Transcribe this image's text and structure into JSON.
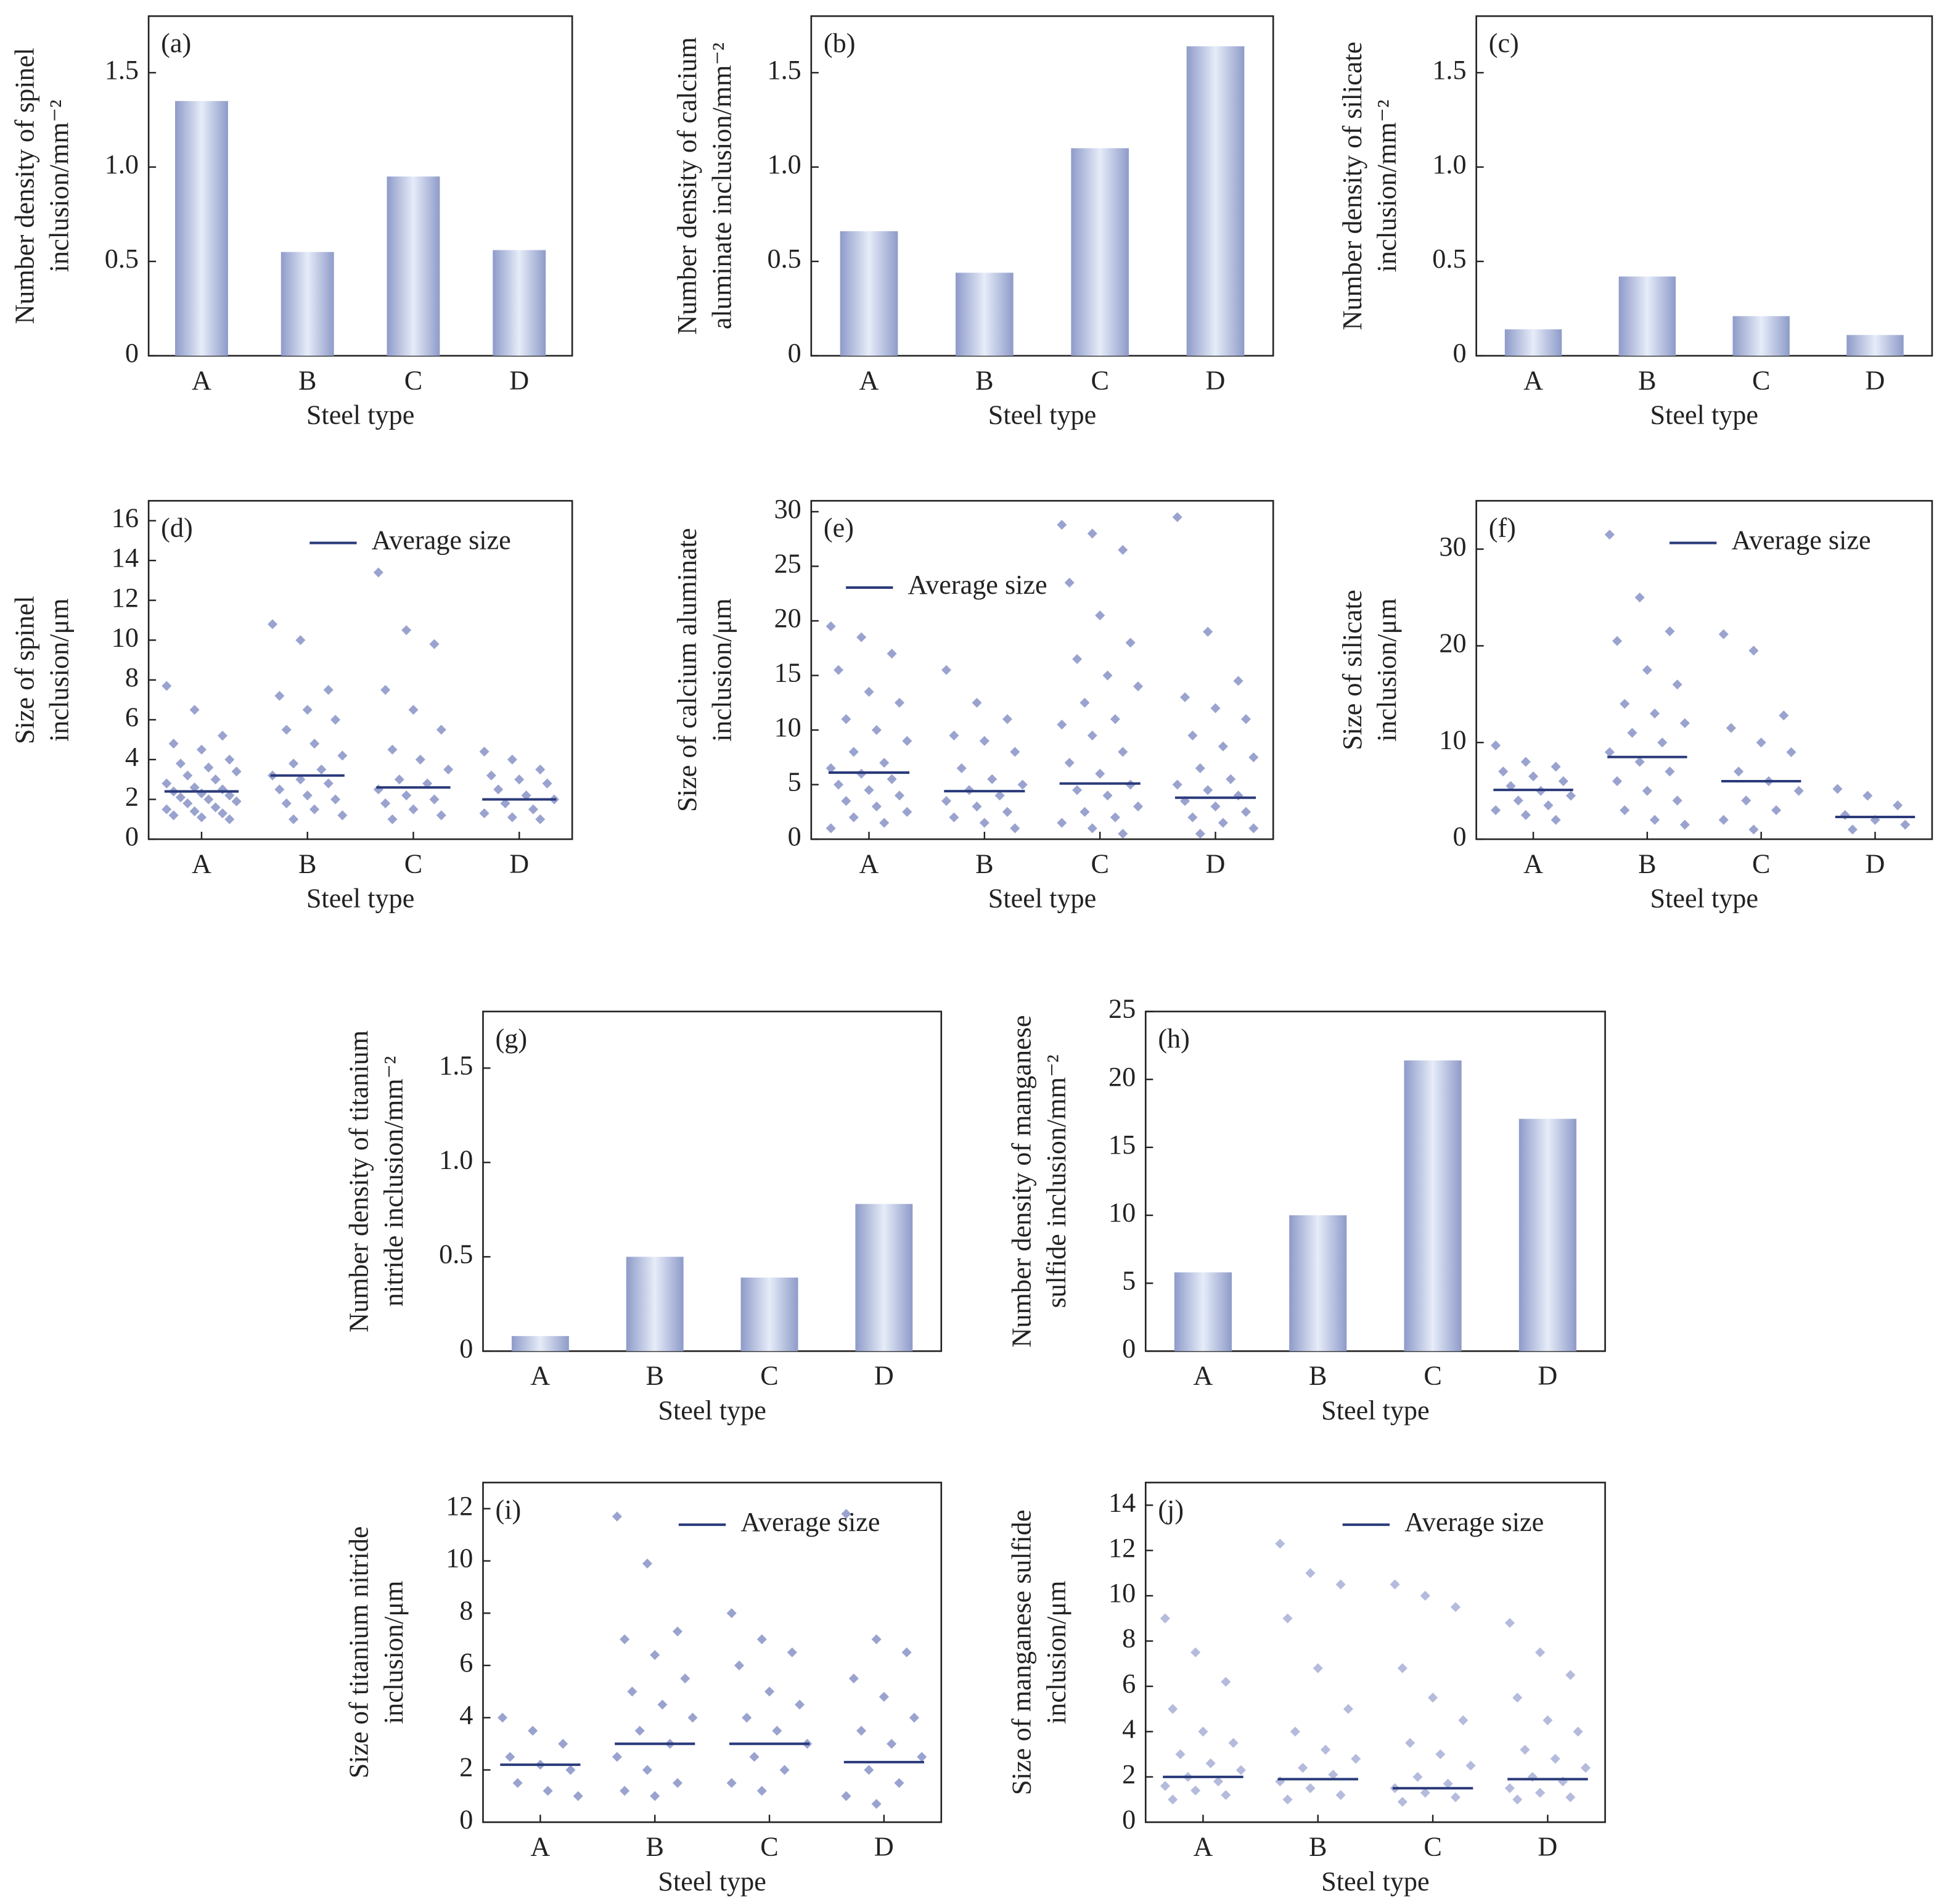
{
  "chart_data": [
    {
      "type": "bar",
      "label": "(a)",
      "ylabel": [
        "Number density of spinel",
        "inclusion/mm⁻²"
      ],
      "xlabel": "Steel type",
      "categories": [
        "A",
        "B",
        "C",
        "D"
      ],
      "values": [
        1.35,
        0.55,
        0.95,
        0.56
      ],
      "color": "#8e9bc9",
      "ylim": [
        0,
        1.8
      ],
      "yticks": [
        0,
        0.5,
        {
          "value": 1,
          "label": "1.0"
        },
        1.5
      ]
    },
    {
      "type": "bar",
      "label": "(b)",
      "ylabel": [
        "Number density of calcium",
        "aluminate inclusion/mm⁻²"
      ],
      "xlabel": "Steel type",
      "categories": [
        "A",
        "B",
        "C",
        "D"
      ],
      "values": [
        0.66,
        0.44,
        1.1,
        1.64
      ],
      "color": "#8e9bc9",
      "ylim": [
        0,
        1.8
      ],
      "yticks": [
        0,
        0.5,
        {
          "value": 1,
          "label": "1.0"
        },
        1.5
      ]
    },
    {
      "type": "bar",
      "label": "(c)",
      "ylabel": [
        "Number density of silicate",
        "inclusion/mm⁻²"
      ],
      "xlabel": "Steel type",
      "categories": [
        "A",
        "B",
        "C",
        "D"
      ],
      "values": [
        0.14,
        0.42,
        0.21,
        0.11
      ],
      "color": "#8e9bc9",
      "ylim": [
        0,
        1.8
      ],
      "yticks": [
        0,
        0.5,
        {
          "value": 1,
          "label": "1.0"
        },
        1.5
      ]
    },
    {
      "type": "strip",
      "label": "(d)",
      "ylabel": [
        "Size of spinel",
        "inclusion/μm"
      ],
      "xlabel": "Steel type",
      "categories": [
        "A",
        "B",
        "C",
        "D"
      ],
      "color": "#9aa3cf",
      "average_color": "#2a3a7a",
      "average_label": "Average size",
      "legend": "upper right",
      "points": [
        [
          7.7,
          6.5,
          5.2,
          4.8,
          4.5,
          4.0,
          3.8,
          3.6,
          3.4,
          3.2,
          3.0,
          2.8,
          2.6,
          2.5,
          2.4,
          2.3,
          2.2,
          2.1,
          2.0,
          1.9,
          1.8,
          1.6,
          1.5,
          1.4,
          1.3,
          1.2,
          1.1,
          1.0
        ],
        [
          10.8,
          10.0,
          7.5,
          7.2,
          6.5,
          6.0,
          5.5,
          4.8,
          4.2,
          3.8,
          3.5,
          3.2,
          3.0,
          2.8,
          2.5,
          2.2,
          2.0,
          1.8,
          1.5,
          1.2,
          1.0
        ],
        [
          13.4,
          10.5,
          9.8,
          7.5,
          6.5,
          5.5,
          4.5,
          4.0,
          3.5,
          3.0,
          2.8,
          2.5,
          2.2,
          2.0,
          1.8,
          1.5,
          1.2,
          1.0
        ],
        [
          4.4,
          4.0,
          3.5,
          3.2,
          3.0,
          2.8,
          2.5,
          2.2,
          2.0,
          1.8,
          1.5,
          1.3,
          1.1,
          1.0
        ]
      ],
      "averages": [
        2.4,
        3.2,
        2.6,
        2.0
      ],
      "ylim": [
        0,
        17
      ],
      "yticks": [
        0,
        2,
        4,
        6,
        8,
        10,
        12,
        14,
        16
      ]
    },
    {
      "type": "strip",
      "label": "(e)",
      "ylabel": [
        "Size of calcium aluminate",
        "inclusion/μm"
      ],
      "xlabel": "Steel type",
      "categories": [
        "A",
        "B",
        "C",
        "D"
      ],
      "color": "#9aa3cf",
      "average_color": "#2a3a7a",
      "average_label": "Average size",
      "legend": "upper left",
      "points": [
        [
          19.5,
          18.5,
          17,
          15.5,
          13.5,
          12.5,
          11,
          10,
          9,
          8,
          7,
          6.5,
          6,
          5.5,
          5,
          4.5,
          4,
          3.5,
          3,
          2.5,
          2,
          1.5,
          1
        ],
        [
          15.5,
          12.5,
          11,
          9.5,
          9,
          8,
          6.5,
          5.5,
          5,
          4.5,
          4,
          3.5,
          3,
          2.5,
          2,
          1.5,
          1
        ],
        [
          28.8,
          28,
          26.5,
          23.5,
          20.5,
          18,
          16.5,
          15,
          14,
          12.5,
          11,
          10.5,
          9.5,
          8,
          7,
          6,
          5,
          4.5,
          4,
          3,
          2.5,
          2,
          1.5,
          1,
          0.5
        ],
        [
          29.5,
          19,
          14.5,
          13,
          12,
          11,
          9.5,
          8.5,
          7.5,
          6.5,
          5.5,
          5,
          4.5,
          4,
          3.5,
          3,
          2.5,
          2,
          1.5,
          1,
          0.5
        ]
      ],
      "averages": [
        6.1,
        4.4,
        5.1,
        3.8
      ],
      "ylim": [
        0,
        31
      ],
      "yticks": [
        0,
        5,
        10,
        15,
        20,
        25,
        30
      ]
    },
    {
      "type": "strip",
      "label": "(f)",
      "ylabel": [
        "Size of silicate",
        "inclusion/μm"
      ],
      "xlabel": "Steel type",
      "categories": [
        "A",
        "B",
        "C",
        "D"
      ],
      "color": "#9aa3cf",
      "average_color": "#2a3a7a",
      "average_label": "Average size",
      "legend": "upper right",
      "points": [
        [
          9.7,
          8,
          7.5,
          7,
          6.5,
          6,
          5.5,
          5,
          4.5,
          4,
          3.5,
          3,
          2.5,
          2
        ],
        [
          31.5,
          25,
          21.5,
          20.5,
          17.5,
          16,
          14,
          13,
          12,
          11,
          10,
          9,
          8,
          7,
          6,
          5,
          4,
          3,
          2,
          1.5
        ],
        [
          21.2,
          19.5,
          12.8,
          11.5,
          10,
          9,
          7,
          6,
          5,
          4,
          3,
          2,
          1
        ],
        [
          5.2,
          4.5,
          3.5,
          2.5,
          2,
          1.5,
          1
        ]
      ],
      "averages": [
        5.1,
        8.5,
        6.0,
        2.3
      ],
      "ylim": [
        0,
        35
      ],
      "yticks": [
        0,
        10,
        20,
        30
      ]
    },
    {
      "type": "bar",
      "label": "(g)",
      "ylabel": [
        "Number density of titanium",
        "nitride inclusion/mm⁻²"
      ],
      "xlabel": "Steel type",
      "categories": [
        "A",
        "B",
        "C",
        "D"
      ],
      "values": [
        0.08,
        0.5,
        0.39,
        0.78
      ],
      "color": "#8e9bc9",
      "ylim": [
        0,
        1.8
      ],
      "yticks": [
        0,
        0.5,
        {
          "value": 1,
          "label": "1.0"
        },
        1.5
      ]
    },
    {
      "type": "bar",
      "label": "(h)",
      "ylabel": [
        "Number density of manganese",
        "sulfide inclusion/mm⁻²"
      ],
      "xlabel": "Steel type",
      "categories": [
        "A",
        "B",
        "C",
        "D"
      ],
      "values": [
        5.8,
        10,
        21.4,
        17.1
      ],
      "color": "#8e9bc9",
      "ylim": [
        0,
        25
      ],
      "yticks": [
        0,
        5,
        10,
        15,
        20,
        25
      ]
    },
    {
      "type": "strip",
      "label": "(i)",
      "ylabel": [
        "Size of titanium nitride",
        "inclusion/μm"
      ],
      "xlabel": "Steel type",
      "categories": [
        "A",
        "B",
        "C",
        "D"
      ],
      "color": "#9aa3cf",
      "average_color": "#2a3a7a",
      "average_label": "Average size",
      "legend": "upper right",
      "points": [
        [
          4.0,
          3.5,
          3.0,
          2.5,
          2.2,
          2.0,
          1.5,
          1.2,
          1.0
        ],
        [
          11.7,
          9.9,
          7.3,
          7.0,
          6.4,
          5.5,
          5.0,
          4.5,
          4.0,
          3.5,
          3.0,
          2.5,
          2.0,
          1.5,
          1.2,
          1.0
        ],
        [
          8.0,
          7.0,
          6.5,
          6.0,
          5.0,
          4.5,
          4.0,
          3.5,
          3.0,
          2.5,
          2.0,
          1.5,
          1.2
        ],
        [
          11.8,
          7.0,
          6.5,
          5.5,
          4.8,
          4.0,
          3.5,
          3.0,
          2.5,
          2.0,
          1.5,
          1.0,
          0.7
        ]
      ],
      "averages": [
        2.2,
        3.0,
        3.0,
        2.3
      ],
      "ylim": [
        0,
        13
      ],
      "yticks": [
        0,
        2,
        4,
        6,
        8,
        10,
        12
      ]
    },
    {
      "type": "strip",
      "label": "(j)",
      "ylabel": [
        "Size of manganese sulfide",
        "inclusion/μm"
      ],
      "xlabel": "Steel type",
      "categories": [
        "A",
        "B",
        "C",
        "D"
      ],
      "color": "#b4bbdc",
      "average_color": "#2a3a7a",
      "average_label": "Average size",
      "legend": "upper right",
      "points": [
        [
          9.0,
          7.5,
          6.2,
          5.0,
          4.0,
          3.5,
          3.0,
          2.6,
          2.3,
          2.0,
          1.8,
          1.6,
          1.4,
          1.2,
          1.0
        ],
        [
          12.3,
          11.0,
          10.5,
          9.0,
          6.8,
          5.0,
          4.0,
          3.2,
          2.8,
          2.4,
          2.1,
          1.8,
          1.5,
          1.2,
          1.0
        ],
        [
          10.5,
          10.0,
          9.5,
          6.8,
          5.5,
          4.5,
          3.5,
          3.0,
          2.5,
          2.0,
          1.7,
          1.5,
          1.3,
          1.1,
          0.9
        ],
        [
          8.8,
          7.5,
          6.5,
          5.5,
          4.5,
          4.0,
          3.2,
          2.8,
          2.4,
          2.0,
          1.8,
          1.5,
          1.3,
          1.1,
          1.0
        ]
      ],
      "averages": [
        2.0,
        1.9,
        1.5,
        1.9
      ],
      "ylim": [
        0,
        15
      ],
      "yticks": [
        0,
        2,
        4,
        6,
        8,
        10,
        12,
        14
      ]
    }
  ]
}
